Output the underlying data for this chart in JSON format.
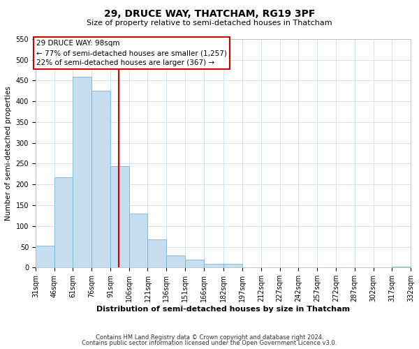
{
  "title": "29, DRUCE WAY, THATCHAM, RG19 3PF",
  "subtitle": "Size of property relative to semi-detached houses in Thatcham",
  "xlabel": "Distribution of semi-detached houses by size in Thatcham",
  "ylabel": "Number of semi-detached properties",
  "footnote1": "Contains HM Land Registry data © Crown copyright and database right 2024.",
  "footnote2": "Contains public sector information licensed under the Open Government Licence v3.0.",
  "bin_edges": [
    31,
    46,
    61,
    76,
    91,
    106,
    121,
    136,
    151,
    166,
    182,
    197,
    212,
    227,
    242,
    257,
    272,
    287,
    302,
    317,
    332
  ],
  "bar_heights": [
    53,
    218,
    460,
    425,
    244,
    130,
    68,
    29,
    19,
    9,
    9,
    0,
    0,
    0,
    0,
    0,
    0,
    0,
    0,
    2
  ],
  "bar_color": "#c5dff0",
  "bar_edge_color": "#7ab4d4",
  "ylim": [
    0,
    550
  ],
  "yticks": [
    0,
    50,
    100,
    150,
    200,
    250,
    300,
    350,
    400,
    450,
    500,
    550
  ],
  "property_size": 98,
  "vline_color": "#cc0000",
  "annotation_title": "29 DRUCE WAY: 98sqm",
  "annotation_line1": "← 77% of semi-detached houses are smaller (1,257)",
  "annotation_line2": "22% of semi-detached houses are larger (367) →",
  "annotation_box_color": "#ffffff",
  "annotation_box_edge": "#cc0000",
  "background_color": "#ffffff",
  "grid_color": "#d0e4f0",
  "title_fontsize": 10,
  "subtitle_fontsize": 8,
  "xlabel_fontsize": 8,
  "ylabel_fontsize": 7.5,
  "tick_fontsize": 7,
  "annotation_fontsize": 7.5,
  "footnote_fontsize": 6
}
